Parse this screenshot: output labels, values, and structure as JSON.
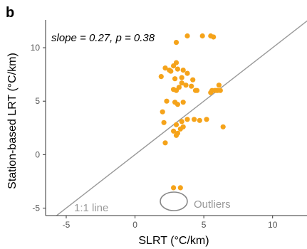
{
  "panel_label": "b",
  "chart_data": {
    "type": "scatter",
    "annotation": "slope = 0.27, p = 0.38",
    "xlabel": "SLRT (°C/km)",
    "ylabel": "Station-based LRT (°C/km)",
    "xlim": [
      -6.5,
      12.5
    ],
    "ylim": [
      -5.7,
      12.6
    ],
    "x_ticks": [
      -5,
      0,
      5,
      10
    ],
    "y_ticks": [
      -5,
      0,
      5,
      10
    ],
    "grid": false,
    "point_color": "#f5a31a",
    "reference_line": {
      "label": "1:1 line",
      "slope": 1,
      "intercept": 0,
      "color": "#999999"
    },
    "outlier_label": "Outliers",
    "outlier_ellipse_color": "#888888",
    "points": [
      [
        3.8,
        11.1
      ],
      [
        4.9,
        11.1
      ],
      [
        5.5,
        11.1
      ],
      [
        5.7,
        11.0
      ],
      [
        3.0,
        10.5
      ],
      [
        3.0,
        8.6
      ],
      [
        2.8,
        8.3
      ],
      [
        3.1,
        8.0
      ],
      [
        2.2,
        8.1
      ],
      [
        2.5,
        7.9
      ],
      [
        3.5,
        7.9
      ],
      [
        2.6,
        7.8
      ],
      [
        3.8,
        7.6
      ],
      [
        1.9,
        7.3
      ],
      [
        3.4,
        7.2
      ],
      [
        2.9,
        7.1
      ],
      [
        4.2,
        7.0
      ],
      [
        3.4,
        6.7
      ],
      [
        3.7,
        6.5
      ],
      [
        3.2,
        6.3
      ],
      [
        4.1,
        6.4
      ],
      [
        3.0,
        6.0
      ],
      [
        2.8,
        6.1
      ],
      [
        6.1,
        6.5
      ],
      [
        6.2,
        6.0
      ],
      [
        5.6,
        6.0
      ],
      [
        5.8,
        6.0
      ],
      [
        5.9,
        6.0
      ],
      [
        6.0,
        6.0
      ],
      [
        5.5,
        5.8
      ],
      [
        4.5,
        6.0
      ],
      [
        4.4,
        6.0
      ],
      [
        2.3,
        5.0
      ],
      [
        2.9,
        4.9
      ],
      [
        3.1,
        4.7
      ],
      [
        3.5,
        4.9
      ],
      [
        2.0,
        4.0
      ],
      [
        2.1,
        3.0
      ],
      [
        3.0,
        2.8
      ],
      [
        3.4,
        3.1
      ],
      [
        3.8,
        3.3
      ],
      [
        4.3,
        3.3
      ],
      [
        4.7,
        3.2
      ],
      [
        5.2,
        3.3
      ],
      [
        3.5,
        2.6
      ],
      [
        3.3,
        2.4
      ],
      [
        3.1,
        2.0
      ],
      [
        2.8,
        2.2
      ],
      [
        3.0,
        1.8
      ],
      [
        6.4,
        2.6
      ],
      [
        2.2,
        1.1
      ],
      [
        2.8,
        -3.1
      ],
      [
        3.3,
        -3.1
      ]
    ]
  }
}
